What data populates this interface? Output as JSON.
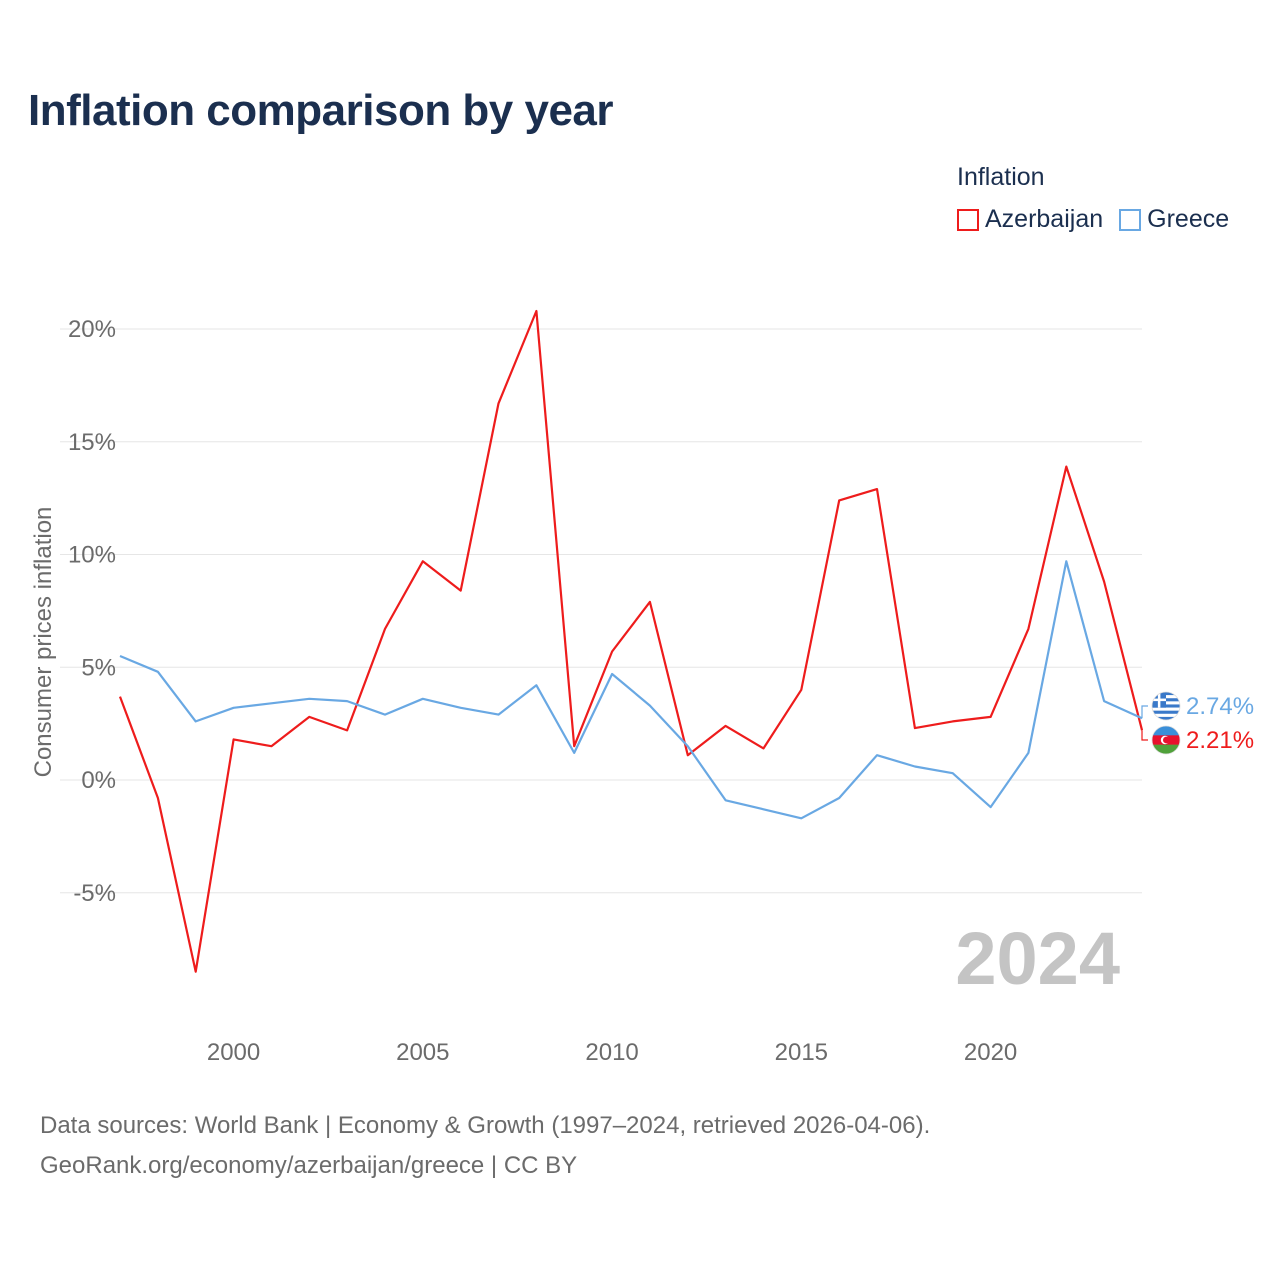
{
  "title": "Inflation comparison by year",
  "legend": {
    "title": "Inflation",
    "items": [
      {
        "label": "Azerbaijan",
        "color": "#ee1c1c"
      },
      {
        "label": "Greece",
        "color": "#69a8e3"
      }
    ]
  },
  "chart_data": {
    "type": "line",
    "title": "Inflation comparison by year",
    "xlabel": "",
    "ylabel": "Consumer prices inflation",
    "x": [
      1997,
      1998,
      1999,
      2000,
      2001,
      2002,
      2003,
      2004,
      2005,
      2006,
      2007,
      2008,
      2009,
      2010,
      2011,
      2012,
      2013,
      2014,
      2015,
      2016,
      2017,
      2018,
      2019,
      2020,
      2021,
      2022,
      2023,
      2024
    ],
    "xlim": [
      1997,
      2024
    ],
    "ylim": [
      -10,
      22
    ],
    "xticks": [
      2000,
      2005,
      2010,
      2015,
      2020
    ],
    "xtick_labels": [
      "2000",
      "2005",
      "2010",
      "2015",
      "2020"
    ],
    "yticks": [
      -5,
      0,
      5,
      10,
      15,
      20
    ],
    "ytick_labels": [
      "-5%",
      "0%",
      "5%",
      "10%",
      "15%",
      "20%"
    ],
    "grid": true,
    "legend_position": "top-right",
    "series": [
      {
        "name": "Azerbaijan",
        "color": "#ee1c1c",
        "values": [
          3.7,
          -0.8,
          -8.5,
          1.8,
          1.5,
          2.8,
          2.2,
          6.7,
          9.7,
          8.4,
          16.7,
          20.8,
          1.5,
          5.7,
          7.9,
          1.1,
          2.4,
          1.4,
          4.0,
          12.4,
          12.9,
          2.3,
          2.6,
          2.8,
          6.7,
          13.9,
          8.8,
          2.21
        ],
        "end_label": "2.21%"
      },
      {
        "name": "Greece",
        "color": "#69a8e3",
        "values": [
          5.5,
          4.8,
          2.6,
          3.2,
          3.4,
          3.6,
          3.5,
          2.9,
          3.6,
          3.2,
          2.9,
          4.2,
          1.2,
          4.7,
          3.3,
          1.5,
          -0.9,
          -1.3,
          -1.7,
          -0.8,
          1.1,
          0.6,
          0.3,
          -1.2,
          1.2,
          9.7,
          3.5,
          2.74
        ],
        "end_label": "2.74%"
      }
    ],
    "annotation": "2024"
  },
  "source": {
    "line1": "Data sources: World Bank | Economy & Growth (1997–2024, retrieved 2026-04-06).",
    "line2": "GeoRank.org/economy/azerbaijan/greece | CC BY"
  }
}
